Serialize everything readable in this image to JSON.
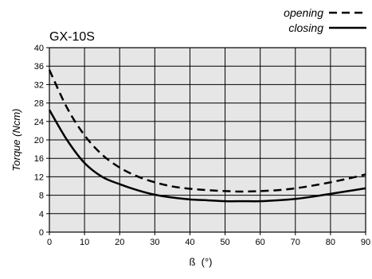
{
  "chart_data": {
    "type": "line",
    "title": "GX-10S",
    "xlabel": "ß  (°)",
    "ylabel": "Torque (Ncm)",
    "xlim": [
      0,
      90
    ],
    "ylim": [
      0,
      40
    ],
    "xticks": [
      "0",
      "10",
      "20",
      "30",
      "40",
      "50",
      "60",
      "70",
      "80",
      "90"
    ],
    "yticks": [
      "0",
      "4",
      "8",
      "12",
      "16",
      "20",
      "24",
      "28",
      "32",
      "36",
      "40"
    ],
    "grid": true,
    "background": "#e6e6e6",
    "legend_position": "top-right",
    "series": [
      {
        "name": "opening",
        "style": "dashed",
        "color": "#000000",
        "x": [
          0,
          5,
          10,
          15,
          20,
          25,
          30,
          35,
          40,
          45,
          50,
          55,
          60,
          65,
          70,
          75,
          80,
          85,
          90
        ],
        "y": [
          35.2,
          27.0,
          21.0,
          16.8,
          14.0,
          12.1,
          10.8,
          9.9,
          9.4,
          9.1,
          8.9,
          8.8,
          8.9,
          9.1,
          9.5,
          10.1,
          10.8,
          11.6,
          12.5
        ]
      },
      {
        "name": "closing",
        "style": "solid",
        "color": "#000000",
        "x": [
          0,
          5,
          10,
          15,
          20,
          25,
          30,
          35,
          40,
          45,
          50,
          55,
          60,
          65,
          70,
          75,
          80,
          85,
          90
        ],
        "y": [
          26.5,
          20.0,
          15.0,
          12.0,
          10.4,
          9.1,
          8.1,
          7.5,
          7.1,
          6.9,
          6.7,
          6.7,
          6.7,
          6.9,
          7.2,
          7.7,
          8.3,
          8.9,
          9.5
        ]
      }
    ]
  }
}
